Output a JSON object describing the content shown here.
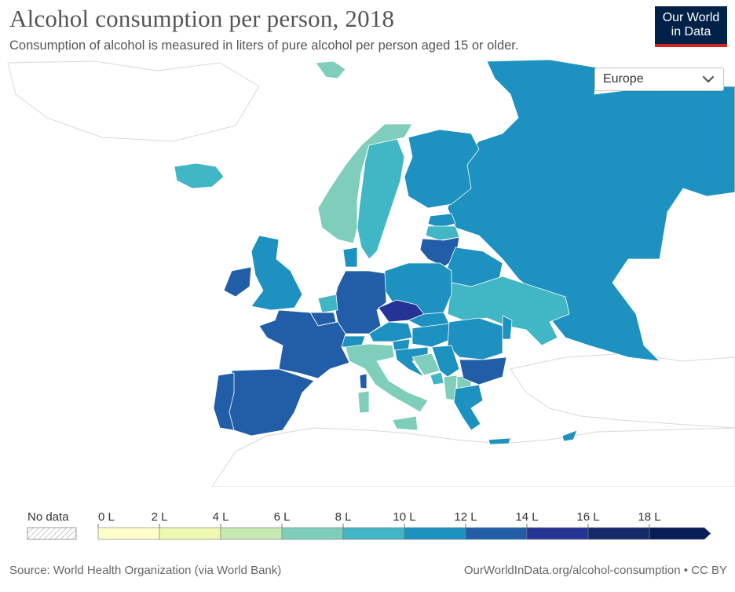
{
  "header": {
    "title": "Alcohol consumption per person, 2018",
    "subtitle": "Consumption of alcohol is measured in liters of pure alcohol per person aged 15 or older."
  },
  "logo": {
    "line1": "Our World",
    "line2": "in Data"
  },
  "region_selector": {
    "selected": "Europe",
    "icon": "chevron-down-icon"
  },
  "legend": {
    "no_data_label": "No data",
    "bins": [
      {
        "label": "0 L",
        "color": "#ffffcc"
      },
      {
        "label": "2 L",
        "color": "#edf8b1"
      },
      {
        "label": "4 L",
        "color": "#c7e9b4"
      },
      {
        "label": "6 L",
        "color": "#7fcdbb"
      },
      {
        "label": "8 L",
        "color": "#41b6c4"
      },
      {
        "label": "10 L",
        "color": "#1d91c0"
      },
      {
        "label": "12 L",
        "color": "#225ea8"
      },
      {
        "label": "14 L",
        "color": "#253494"
      },
      {
        "label": "16 L",
        "color": "#152a6b"
      },
      {
        "label": "18 L",
        "color": "#081d58"
      }
    ]
  },
  "footer": {
    "source": "Source: World Health Organization (via World Bank)",
    "url": "OurWorldInData.org/alcohol-consumption • CC BY"
  }
}
